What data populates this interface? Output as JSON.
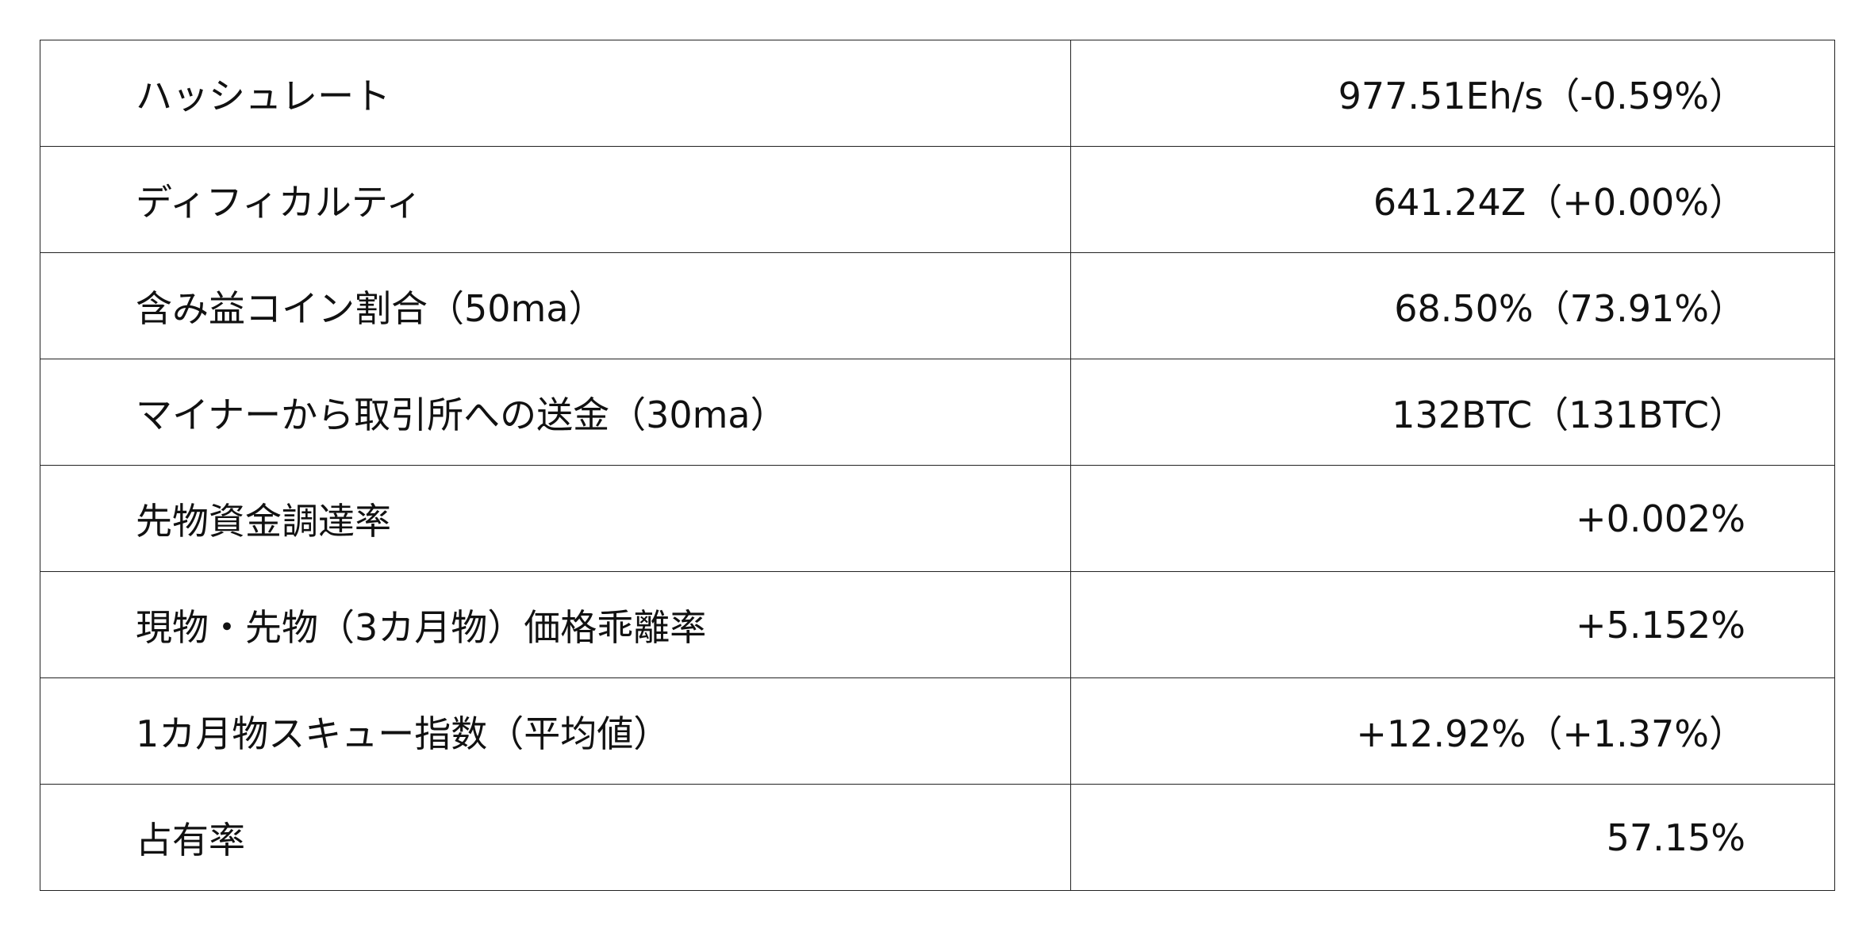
{
  "rows": [
    {
      "label": "ハッシュレート",
      "value": "977.51Eh/s（-0.59%）"
    },
    {
      "label": "ディフィカルティ",
      "value": "641.24Z（+0.00%）"
    },
    {
      "label": "含み益コイン割合（50ma）",
      "value": "68.50%（73.91%）"
    },
    {
      "label": "マイナーから取引所への送金（30ma）",
      "value": "132BTC（131BTC）"
    },
    {
      "label": "先物資金調達率",
      "value": "+0.002%"
    },
    {
      "label": "現物・先物（3カ月物）価格乖離率",
      "value": "+5.152%"
    },
    {
      "label": "1カ月物スキュー指数（平均値）",
      "value": "+12.92%（+1.37%）"
    },
    {
      "label": "占有率",
      "value": "57.15%"
    }
  ]
}
